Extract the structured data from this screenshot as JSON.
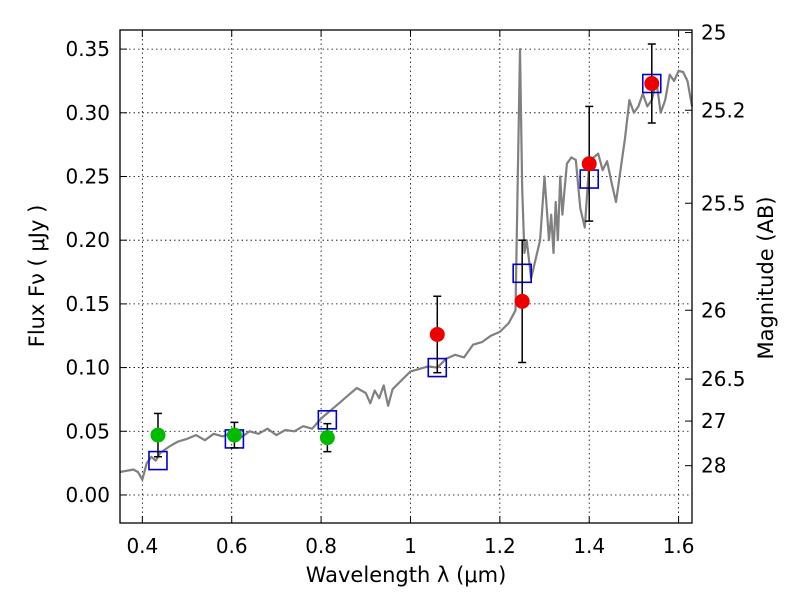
{
  "chart_data": {
    "type": "scatter",
    "xlabel": "Wavelength  λ (μm)",
    "ylabel": "Flux  Fν  ( μJy )",
    "y2label": "Magnitude (AB)",
    "xlim": [
      0.35,
      1.63
    ],
    "ylim": [
      -0.022,
      0.365
    ],
    "grid": true,
    "x_ticks": [
      0.4,
      0.6,
      0.8,
      1.0,
      1.2,
      1.4,
      1.6
    ],
    "x_tick_labels": [
      "0.4",
      "0.6",
      "0.8",
      "1",
      "1.2",
      "1.4",
      "1.6"
    ],
    "y_ticks": [
      0.0,
      0.05,
      0.1,
      0.15,
      0.2,
      0.25,
      0.3,
      0.35
    ],
    "y_tick_labels": [
      "0.00",
      "0.05",
      "0.10",
      "0.15",
      "0.20",
      "0.25",
      "0.30",
      "0.35"
    ],
    "mag_ticks": [
      {
        "label": "25",
        "flux": 0.363
      },
      {
        "label": "25.2",
        "flux": 0.302
      },
      {
        "label": "25.5",
        "flux": 0.229
      },
      {
        "label": "26",
        "flux": 0.145
      },
      {
        "label": "26.5",
        "flux": 0.091
      },
      {
        "label": "27",
        "flux": 0.058
      },
      {
        "label": "28",
        "flux": 0.023
      }
    ],
    "model_spectrum": {
      "name": "model SED",
      "color": "#808080",
      "x": [
        0.35,
        0.38,
        0.39,
        0.4,
        0.41,
        0.42,
        0.43,
        0.44,
        0.46,
        0.48,
        0.5,
        0.52,
        0.54,
        0.56,
        0.58,
        0.6,
        0.62,
        0.64,
        0.66,
        0.68,
        0.7,
        0.72,
        0.74,
        0.76,
        0.78,
        0.8,
        0.82,
        0.84,
        0.86,
        0.88,
        0.9,
        0.91,
        0.92,
        0.93,
        0.94,
        0.95,
        0.96,
        0.98,
        1.0,
        1.02,
        1.04,
        1.06,
        1.08,
        1.1,
        1.12,
        1.14,
        1.16,
        1.18,
        1.2,
        1.22,
        1.235,
        1.245,
        1.25,
        1.255,
        1.26,
        1.27,
        1.28,
        1.29,
        1.3,
        1.31,
        1.315,
        1.32,
        1.325,
        1.33,
        1.335,
        1.34,
        1.345,
        1.35,
        1.36,
        1.37,
        1.38,
        1.39,
        1.4,
        1.41,
        1.42,
        1.43,
        1.44,
        1.45,
        1.46,
        1.47,
        1.48,
        1.49,
        1.5,
        1.51,
        1.52,
        1.53,
        1.54,
        1.55,
        1.56,
        1.57,
        1.58,
        1.59,
        1.6,
        1.61,
        1.62,
        1.63
      ],
      "y": [
        0.018,
        0.02,
        0.018,
        0.012,
        0.025,
        0.03,
        0.027,
        0.033,
        0.038,
        0.042,
        0.044,
        0.047,
        0.043,
        0.048,
        0.046,
        0.049,
        0.045,
        0.05,
        0.048,
        0.052,
        0.047,
        0.051,
        0.05,
        0.054,
        0.052,
        0.06,
        0.066,
        0.072,
        0.078,
        0.084,
        0.08,
        0.072,
        0.082,
        0.076,
        0.086,
        0.07,
        0.083,
        0.09,
        0.097,
        0.099,
        0.101,
        0.1,
        0.107,
        0.11,
        0.108,
        0.118,
        0.12,
        0.125,
        0.128,
        0.135,
        0.145,
        0.35,
        0.24,
        0.19,
        0.2,
        0.17,
        0.185,
        0.2,
        0.25,
        0.2,
        0.22,
        0.19,
        0.23,
        0.2,
        0.25,
        0.22,
        0.24,
        0.26,
        0.265,
        0.263,
        0.225,
        0.21,
        0.26,
        0.265,
        0.268,
        0.255,
        0.262,
        0.245,
        0.23,
        0.255,
        0.28,
        0.31,
        0.3,
        0.305,
        0.315,
        0.305,
        0.31,
        0.325,
        0.3,
        0.31,
        0.33,
        0.325,
        0.333,
        0.332,
        0.325,
        0.305
      ]
    },
    "model_photometry": {
      "name": "model photometry",
      "color": "#0000cc",
      "x": [
        0.435,
        0.606,
        0.814,
        1.06,
        1.25,
        1.4,
        1.54
      ],
      "y": [
        0.027,
        0.044,
        0.059,
        0.1,
        0.174,
        0.248,
        0.323
      ]
    },
    "detections": {
      "name": "detections",
      "color": "#ee0000",
      "x": [
        1.06,
        1.25,
        1.4,
        1.54
      ],
      "y": [
        0.126,
        0.152,
        0.26,
        0.323
      ],
      "err": [
        0.03,
        0.048,
        0.045,
        0.031
      ]
    },
    "marginal": {
      "name": "marginal",
      "color": "#00bb00",
      "x": [
        0.435,
        0.606,
        0.814
      ],
      "y": [
        0.047,
        0.047,
        0.045
      ],
      "err": [
        0.017,
        0.01,
        0.011
      ]
    }
  }
}
